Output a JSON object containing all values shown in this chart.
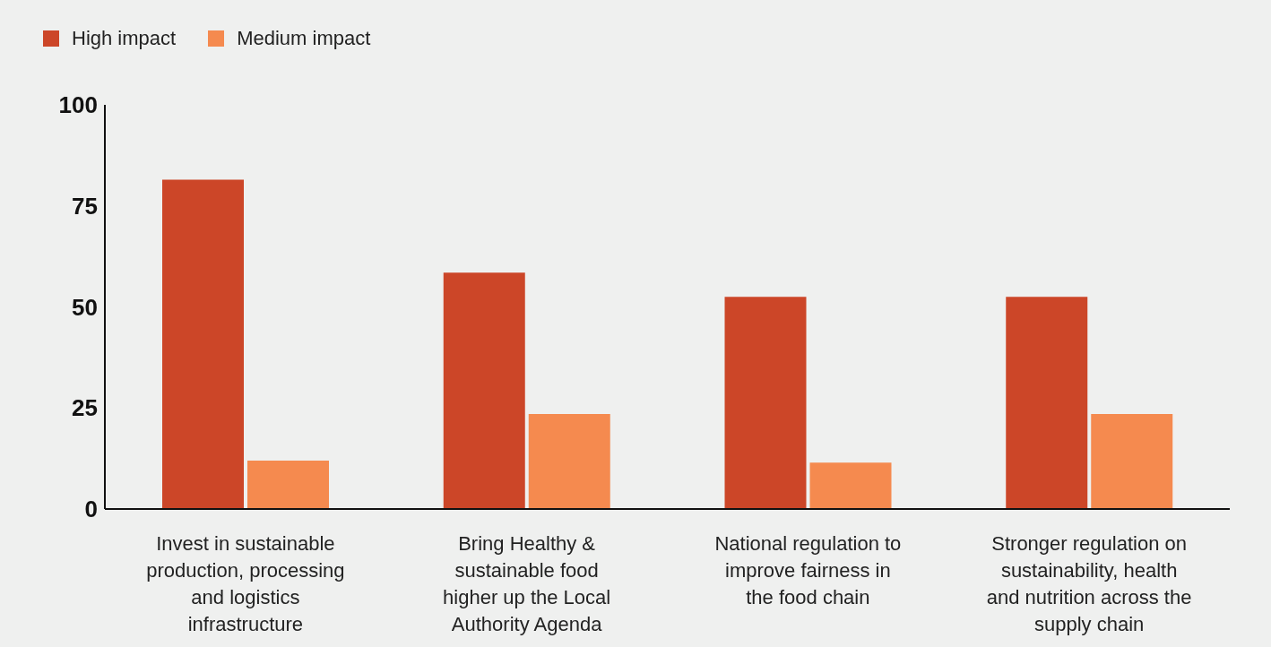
{
  "chart_data": {
    "type": "bar",
    "categories": [
      "Invest in sustainable\nproduction, processing\nand logistics\ninfrastructure",
      "Bring Healthy &\nsustainable food\nhigher up the Local\nAuthority Agenda",
      "National regulation to\nimprove fairness in\nthe food chain",
      "Stronger regulation on\nsustainability, health\nand nutrition across the\nsupply chain"
    ],
    "series": [
      {
        "name": "High impact",
        "color": "#cc4628",
        "values": [
          81.5,
          58.5,
          52.5,
          52.5
        ]
      },
      {
        "name": "Medium impact",
        "color": "#f58a4f",
        "values": [
          12,
          23.5,
          11.5,
          23.5
        ]
      }
    ],
    "ylim": [
      0,
      100
    ],
    "yticks": [
      0,
      25,
      50,
      75,
      100
    ],
    "grid": false,
    "legend": "top left"
  }
}
